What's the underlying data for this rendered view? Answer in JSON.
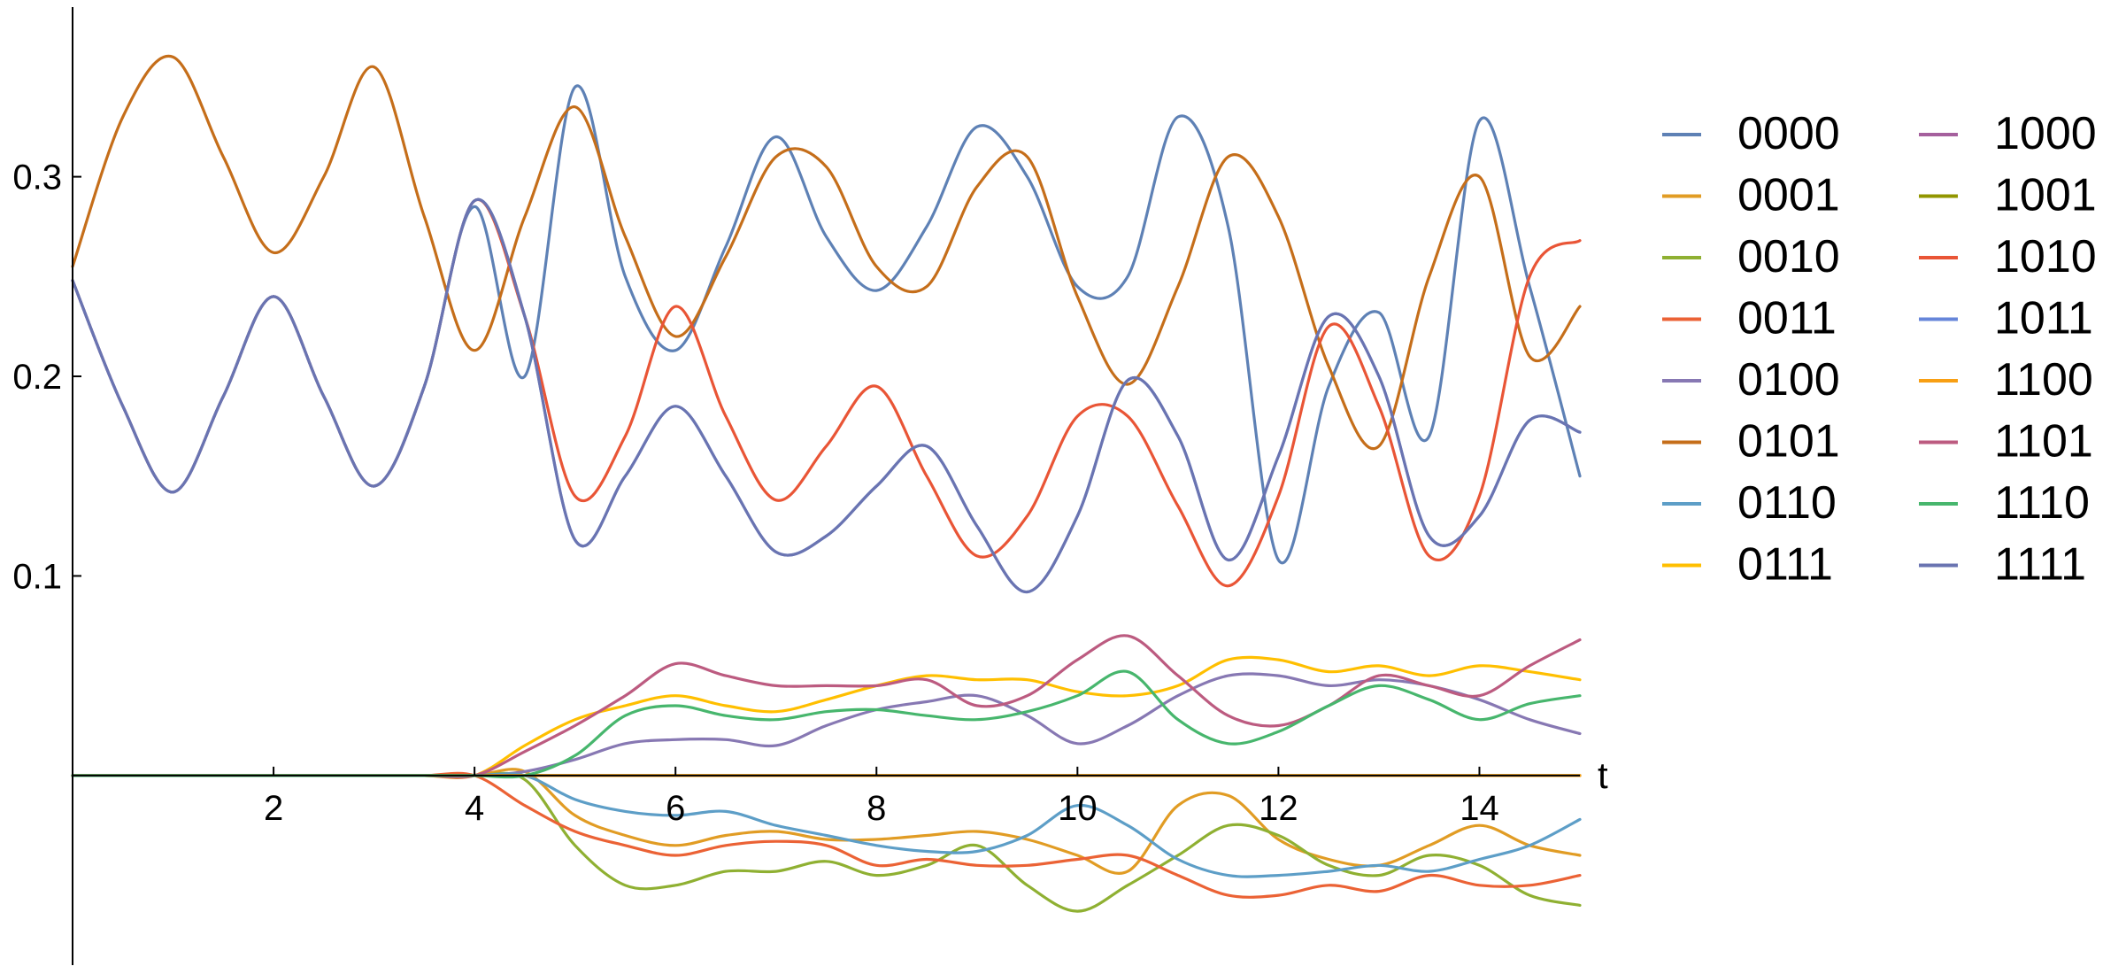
{
  "chart_data": {
    "type": "line",
    "title": "",
    "xlabel": "t",
    "ylabel": "",
    "xlim": [
      0,
      15
    ],
    "ylim": [
      -0.095,
      0.385
    ],
    "x_ticks": [
      2,
      4,
      6,
      8,
      10,
      12,
      14
    ],
    "y_ticks": [
      0.1,
      0.2,
      0.3
    ],
    "y_tick_labels": [
      "0.1",
      "0.2",
      "0.3"
    ],
    "x_tick_labels": [
      "2",
      "4",
      "6",
      "8",
      "10",
      "12",
      "14"
    ],
    "grid": false,
    "legend_position": "right",
    "legend_columns": 2,
    "x": [
      0,
      0.5,
      1,
      1.5,
      2,
      2.5,
      3,
      3.5,
      4,
      4.5,
      5,
      5.5,
      6,
      6.5,
      7,
      7.5,
      8,
      8.5,
      9,
      9.5,
      10,
      10.5,
      11,
      11.5,
      12,
      12.5,
      13,
      13.5,
      14,
      14.5,
      15
    ],
    "series": [
      {
        "name": "0000",
        "color": "#5E81B5",
        "values": [
          0.248,
          0.185,
          0.142,
          0.19,
          0.24,
          0.19,
          0.145,
          0.195,
          0.285,
          0.2,
          0.345,
          0.25,
          0.213,
          0.265,
          0.32,
          0.27,
          0.243,
          0.275,
          0.325,
          0.3,
          0.245,
          0.25,
          0.33,
          0.275,
          0.108,
          0.195,
          0.232,
          0.17,
          0.328,
          0.245,
          0.15
        ]
      },
      {
        "name": "0001",
        "color": "#E19C24",
        "values": [
          0,
          0,
          0,
          0,
          0,
          0,
          0,
          0,
          0,
          0.002,
          -0.02,
          -0.03,
          -0.035,
          -0.03,
          -0.028,
          -0.032,
          -0.032,
          -0.03,
          -0.028,
          -0.032,
          -0.04,
          -0.048,
          -0.015,
          -0.01,
          -0.032,
          -0.042,
          -0.045,
          -0.035,
          -0.025,
          -0.035,
          -0.04
        ]
      },
      {
        "name": "0010",
        "color": "#8FB032",
        "values": [
          0,
          0,
          0,
          0,
          0,
          0,
          0,
          0,
          0,
          -0.002,
          -0.035,
          -0.055,
          -0.055,
          -0.048,
          -0.048,
          -0.043,
          -0.05,
          -0.045,
          -0.035,
          -0.055,
          -0.068,
          -0.055,
          -0.04,
          -0.025,
          -0.03,
          -0.045,
          -0.05,
          -0.04,
          -0.045,
          -0.06,
          -0.065
        ]
      },
      {
        "name": "0011",
        "color": "#EB6235",
        "values": [
          0,
          0,
          0,
          0,
          0,
          0,
          0,
          0,
          0.0,
          -0.015,
          -0.028,
          -0.035,
          -0.04,
          -0.035,
          -0.033,
          -0.035,
          -0.045,
          -0.042,
          -0.045,
          -0.045,
          -0.042,
          -0.04,
          -0.05,
          -0.06,
          -0.06,
          -0.055,
          -0.058,
          -0.05,
          -0.055,
          -0.055,
          -0.05
        ]
      },
      {
        "name": "0100",
        "color": "#8778B3",
        "values": [
          0,
          0,
          0,
          0,
          0,
          0,
          0,
          0,
          0.0,
          0.002,
          0.008,
          0.016,
          0.018,
          0.018,
          0.015,
          0.025,
          0.033,
          0.037,
          0.04,
          0.03,
          0.016,
          0.025,
          0.04,
          0.05,
          0.05,
          0.045,
          0.048,
          0.045,
          0.038,
          0.028,
          0.021
        ]
      },
      {
        "name": "0101",
        "color": "#C56E1A",
        "values": [
          0.255,
          0.33,
          0.36,
          0.31,
          0.262,
          0.3,
          0.355,
          0.28,
          0.213,
          0.28,
          0.335,
          0.27,
          0.22,
          0.26,
          0.31,
          0.305,
          0.255,
          0.245,
          0.295,
          0.31,
          0.24,
          0.196,
          0.245,
          0.31,
          0.28,
          0.205,
          0.165,
          0.25,
          0.3,
          0.21,
          0.235
        ]
      },
      {
        "name": "0110",
        "color": "#5D9EC7",
        "values": [
          0,
          0,
          0,
          0,
          0,
          0,
          0,
          0,
          0,
          0.0,
          -0.012,
          -0.018,
          -0.02,
          -0.018,
          -0.025,
          -0.03,
          -0.035,
          -0.038,
          -0.038,
          -0.03,
          -0.015,
          -0.025,
          -0.042,
          -0.05,
          -0.05,
          -0.048,
          -0.045,
          -0.048,
          -0.042,
          -0.035,
          -0.022
        ]
      },
      {
        "name": "0111",
        "color": "#FFBF00",
        "values": [
          0,
          0,
          0,
          0,
          0,
          0,
          0,
          0,
          0.0,
          0.015,
          0.028,
          0.035,
          0.04,
          0.035,
          0.032,
          0.038,
          0.045,
          0.05,
          0.048,
          0.048,
          0.042,
          0.04,
          0.045,
          0.058,
          0.058,
          0.052,
          0.055,
          0.05,
          0.055,
          0.052,
          0.048
        ]
      },
      {
        "name": "1000",
        "color": "#A5609D",
        "values": [
          0,
          0,
          0,
          0,
          0,
          0,
          0,
          0,
          0,
          0,
          0,
          0,
          0,
          0,
          0,
          0,
          0,
          0,
          0,
          0,
          0,
          0,
          0,
          0,
          0,
          0,
          0,
          0,
          0,
          0,
          0
        ]
      },
      {
        "name": "1001",
        "color": "#929600",
        "values": [
          0,
          0,
          0,
          0,
          0,
          0,
          0,
          0,
          0,
          0,
          0,
          0,
          0,
          0,
          0,
          0,
          0,
          0,
          0,
          0,
          0,
          0,
          0,
          0,
          0,
          0,
          0,
          0,
          0,
          0,
          0
        ]
      },
      {
        "name": "1010",
        "color": "#E95536",
        "values": [
          0.248,
          0.185,
          0.142,
          0.19,
          0.24,
          0.19,
          0.145,
          0.195,
          0.288,
          0.23,
          0.14,
          0.17,
          0.235,
          0.18,
          0.138,
          0.165,
          0.195,
          0.15,
          0.11,
          0.13,
          0.18,
          0.18,
          0.135,
          0.095,
          0.14,
          0.225,
          0.185,
          0.11,
          0.14,
          0.25,
          0.268
        ]
      },
      {
        "name": "1011",
        "color": "#6685D9",
        "values": [
          0.248,
          0.185,
          0.142,
          0.19,
          0.24,
          0.19,
          0.145,
          0.195,
          0.288,
          0.23,
          0.118,
          0.15,
          0.185,
          0.15,
          0.112,
          0.12,
          0.145,
          0.165,
          0.125,
          0.092,
          0.13,
          0.198,
          0.17,
          0.108,
          0.16,
          0.23,
          0.2,
          0.12,
          0.13,
          0.178,
          0.172
        ]
      },
      {
        "name": "1100",
        "color": "#F89F13",
        "values": [
          0,
          0,
          0,
          0,
          0,
          0,
          0,
          0,
          0,
          0,
          0,
          0,
          0,
          0,
          0,
          0,
          0,
          0,
          0,
          0,
          0,
          0,
          0,
          0,
          0,
          0,
          0,
          0,
          0,
          0,
          0
        ]
      },
      {
        "name": "1101",
        "color": "#BC5B80",
        "values": [
          0,
          0,
          0,
          0,
          0,
          0,
          0,
          0,
          0.0,
          0.012,
          0.025,
          0.04,
          0.056,
          0.05,
          0.045,
          0.045,
          0.045,
          0.048,
          0.035,
          0.04,
          0.058,
          0.07,
          0.05,
          0.03,
          0.025,
          0.035,
          0.05,
          0.045,
          0.04,
          0.055,
          0.068
        ]
      },
      {
        "name": "1110",
        "color": "#47B66D",
        "values": [
          0,
          0,
          0,
          0,
          0,
          0,
          0,
          0,
          0,
          0.0,
          0.01,
          0.03,
          0.035,
          0.03,
          0.028,
          0.032,
          0.033,
          0.03,
          0.028,
          0.032,
          0.04,
          0.052,
          0.028,
          0.016,
          0.022,
          0.035,
          0.045,
          0.038,
          0.028,
          0.036,
          0.04
        ]
      },
      {
        "name": "1111",
        "color": "#6A74B1",
        "values": [
          0.248,
          0.185,
          0.142,
          0.19,
          0.24,
          0.19,
          0.145,
          0.195,
          0.288,
          0.23,
          0.118,
          0.15,
          0.185,
          0.15,
          0.112,
          0.12,
          0.145,
          0.165,
          0.125,
          0.092,
          0.13,
          0.198,
          0.17,
          0.108,
          0.16,
          0.23,
          0.2,
          0.12,
          0.13,
          0.178,
          0.172
        ]
      }
    ]
  }
}
